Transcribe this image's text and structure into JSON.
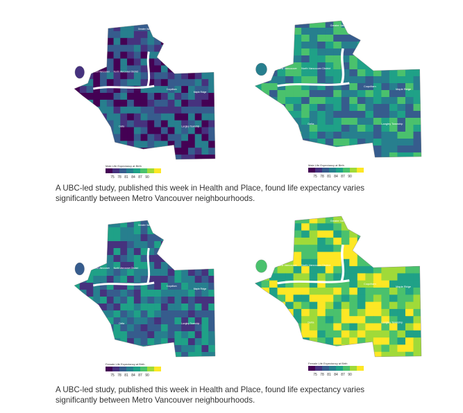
{
  "figures": [
    {
      "maps": [
        {
          "legend_title": "Male Life Expectancy at Birth",
          "legend_ticks": [
            75,
            78,
            81,
            84,
            87,
            90
          ]
        },
        {
          "legend_title": "Male Life Expectancy at Birth",
          "legend_ticks": [
            75,
            78,
            81,
            84,
            87,
            90
          ]
        }
      ],
      "caption": [
        "A UBC-led study, published this week in Health and Place, found life expectancy varies",
        "significantly between Metro Vancouver neighbourhoods."
      ]
    },
    {
      "maps": [
        {
          "legend_title": "Female Life Expectancy at Birth",
          "legend_ticks": [
            75,
            78,
            81,
            84,
            87,
            90
          ]
        },
        {
          "legend_title": "Female Life Expectancy at Birth",
          "legend_ticks": [
            75,
            78,
            81,
            84,
            87,
            90
          ]
        }
      ],
      "caption": [
        "A UBC-led study, published this week in Health and Place, found life expectancy varies",
        "significantly between Metro Vancouver neighbourhoods."
      ]
    }
  ],
  "place_labels": [
    "Lions Bay",
    "Greater Vancouver A",
    "Bowen Island",
    "West Vancouver",
    "North Vancouver District",
    "Coquitlam",
    "Maple Ridge",
    "Delta",
    "Langley Township"
  ]
}
